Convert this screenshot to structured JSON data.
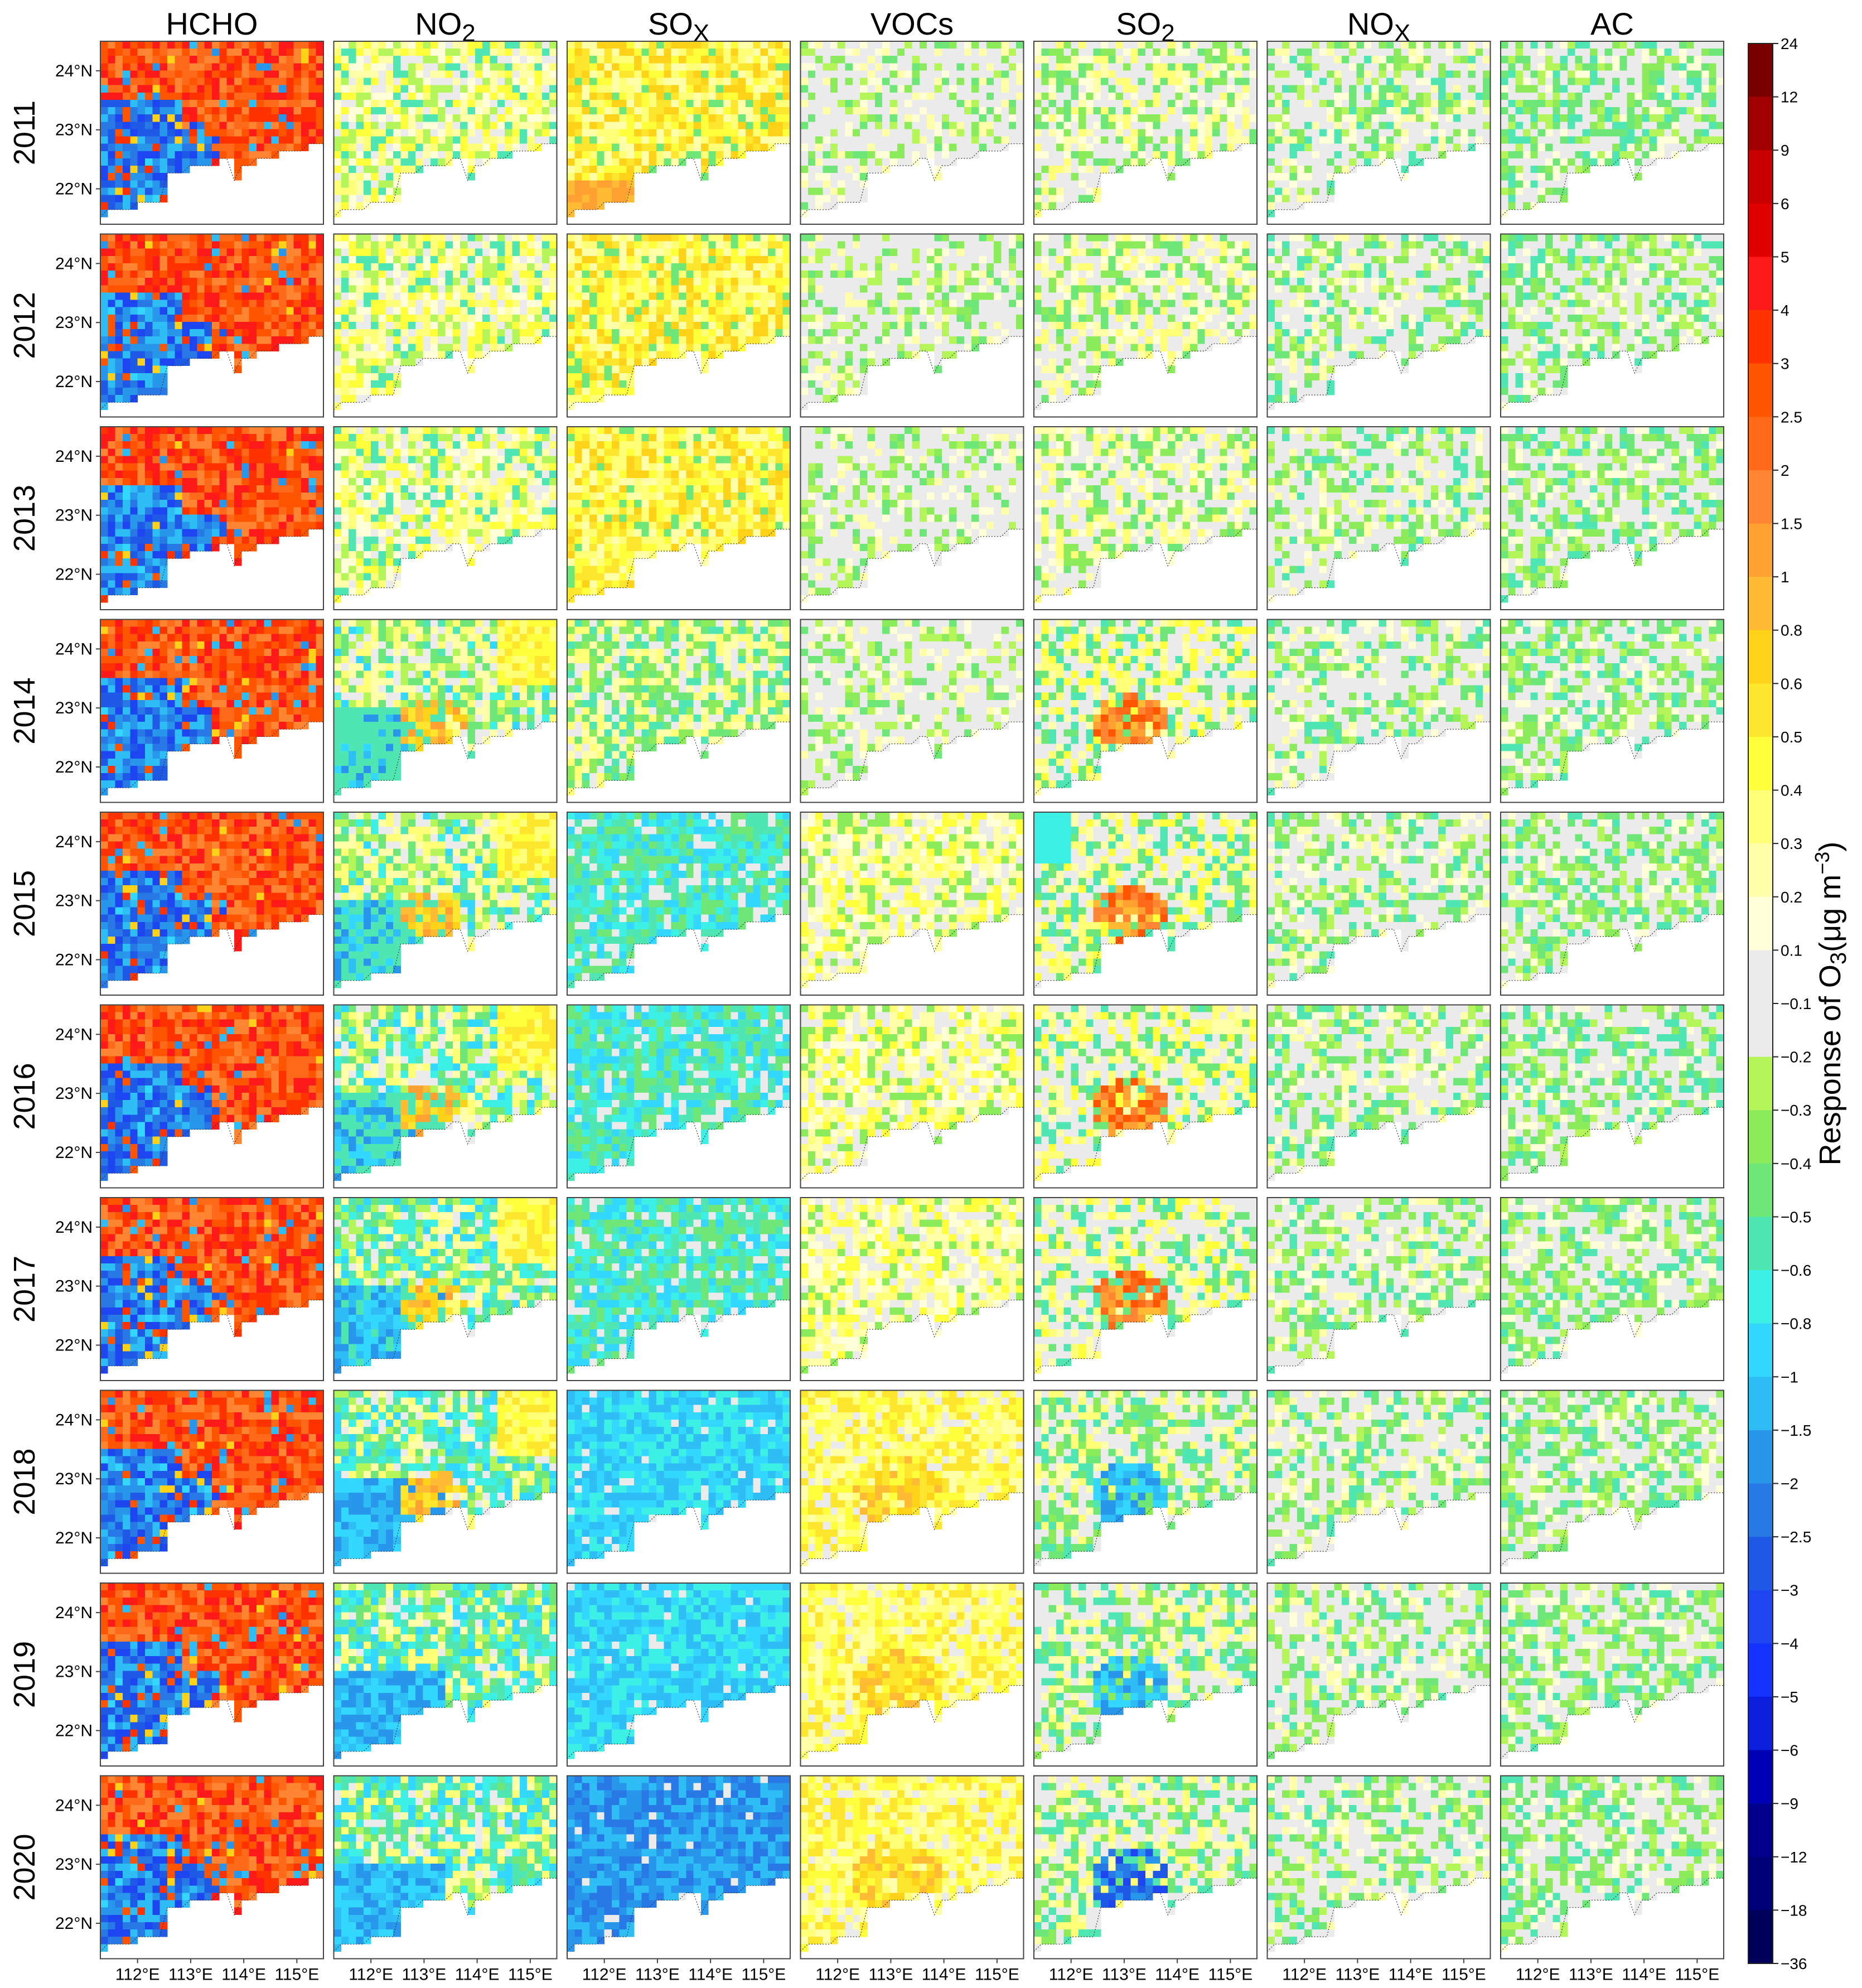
{
  "chart_data": {
    "type": "heatmap",
    "variables": [
      "HCHO",
      "NO2",
      "SOx",
      "VOCs",
      "SO2",
      "NOx",
      "AC"
    ],
    "column_titles": [
      {
        "main": "HCHO",
        "sub": ""
      },
      {
        "main": "NO",
        "sub": "2"
      },
      {
        "main": "SO",
        "sub": "X"
      },
      {
        "main": "VOCs",
        "sub": ""
      },
      {
        "main": "SO",
        "sub": "2"
      },
      {
        "main": "NO",
        "sub": "X"
      },
      {
        "main": "AC",
        "sub": ""
      }
    ],
    "years": [
      "2011",
      "2012",
      "2013",
      "2014",
      "2015",
      "2016",
      "2017",
      "2018",
      "2019",
      "2020"
    ],
    "lat_ticks": [
      "24°N",
      "23°N",
      "22°N"
    ],
    "lat_tick_values": [
      24,
      23,
      22
    ],
    "lon_ticks": [
      "112°E",
      "113°E",
      "114°E",
      "115°E"
    ],
    "lon_tick_values": [
      112,
      113,
      114,
      115
    ],
    "lon_range": [
      111.3,
      115.5
    ],
    "lat_range": [
      21.4,
      24.5
    ],
    "colorbar": {
      "label": "Response of  O3(μg m⁻³)",
      "label_main": "Response of  O",
      "label_sub": "3",
      "label_tail": "(μg m",
      "label_sup": "−3",
      "label_end": ")",
      "tick_labels": [
        "24",
        "12",
        "9",
        "6",
        "5",
        "4",
        "3",
        "2.5",
        "2",
        "1.5",
        "1",
        "0.8",
        "0.6",
        "0.5",
        "0.4",
        "0.3",
        "0.2",
        "0.1",
        "−0.1",
        "−0.2",
        "−0.3",
        "−0.4",
        "−0.5",
        "−0.6",
        "−0.8",
        "−1",
        "−1.5",
        "−2",
        "−2.5",
        "−3",
        "−4",
        "−5",
        "−6",
        "−9",
        "−12",
        "−18",
        "−36"
      ],
      "colors": [
        "#7a0000",
        "#a00000",
        "#c80000",
        "#e00000",
        "#ff1a1a",
        "#ff3300",
        "#ff5500",
        "#ff6a1a",
        "#ff8533",
        "#ffa033",
        "#ffbb33",
        "#ffd21a",
        "#ffe62e",
        "#ffff3c",
        "#ffff78",
        "#ffffaa",
        "#ffffd8",
        "#ebebeb",
        "#ebebeb",
        "#b4f55a",
        "#8ceb5a",
        "#6ee678",
        "#50e6b4",
        "#3cf0e6",
        "#33d7ff",
        "#2ebef5",
        "#2896eb",
        "#2878e6",
        "#1e5ae6",
        "#1e46f0",
        "#1432ff",
        "#0a1edc",
        "#0000b4",
        "#00008c",
        "#000078",
        "#00005a"
      ],
      "value_order": "top-to-bottom"
    },
    "panels": [
      {
        "variable": "HCHO",
        "summary": "Strong positive response (orange-red) over north and east; strong negative response (blue) over southwest and central cells, all years"
      },
      {
        "variable": "NO2",
        "summary": "Weak positive (yellow) 2011-2013; negative (cyan-blue) southwest with positive (orange) center from 2014-2018; mostly negative by 2019-2020"
      },
      {
        "variable": "SOx",
        "summary": "Positive (yellow-orange) 2011-2013; shifts to negative (green-cyan) from 2015, strongly negative (blue) 2018-2020"
      },
      {
        "variable": "VOCs",
        "summary": "Near zero (gray-green) 2011-2014; increasingly positive (yellow-orange) 2015-2020"
      },
      {
        "variable": "SO2",
        "summary": "Weak mixed 2011-2013; positive (orange) center 2014-2017; negative (blue) center 2018-2020"
      },
      {
        "variable": "NOx",
        "summary": "Near zero (gray with weak green/yellow) in all years"
      },
      {
        "variable": "AC",
        "summary": "Near zero with weak negative (green) in all years"
      }
    ]
  }
}
